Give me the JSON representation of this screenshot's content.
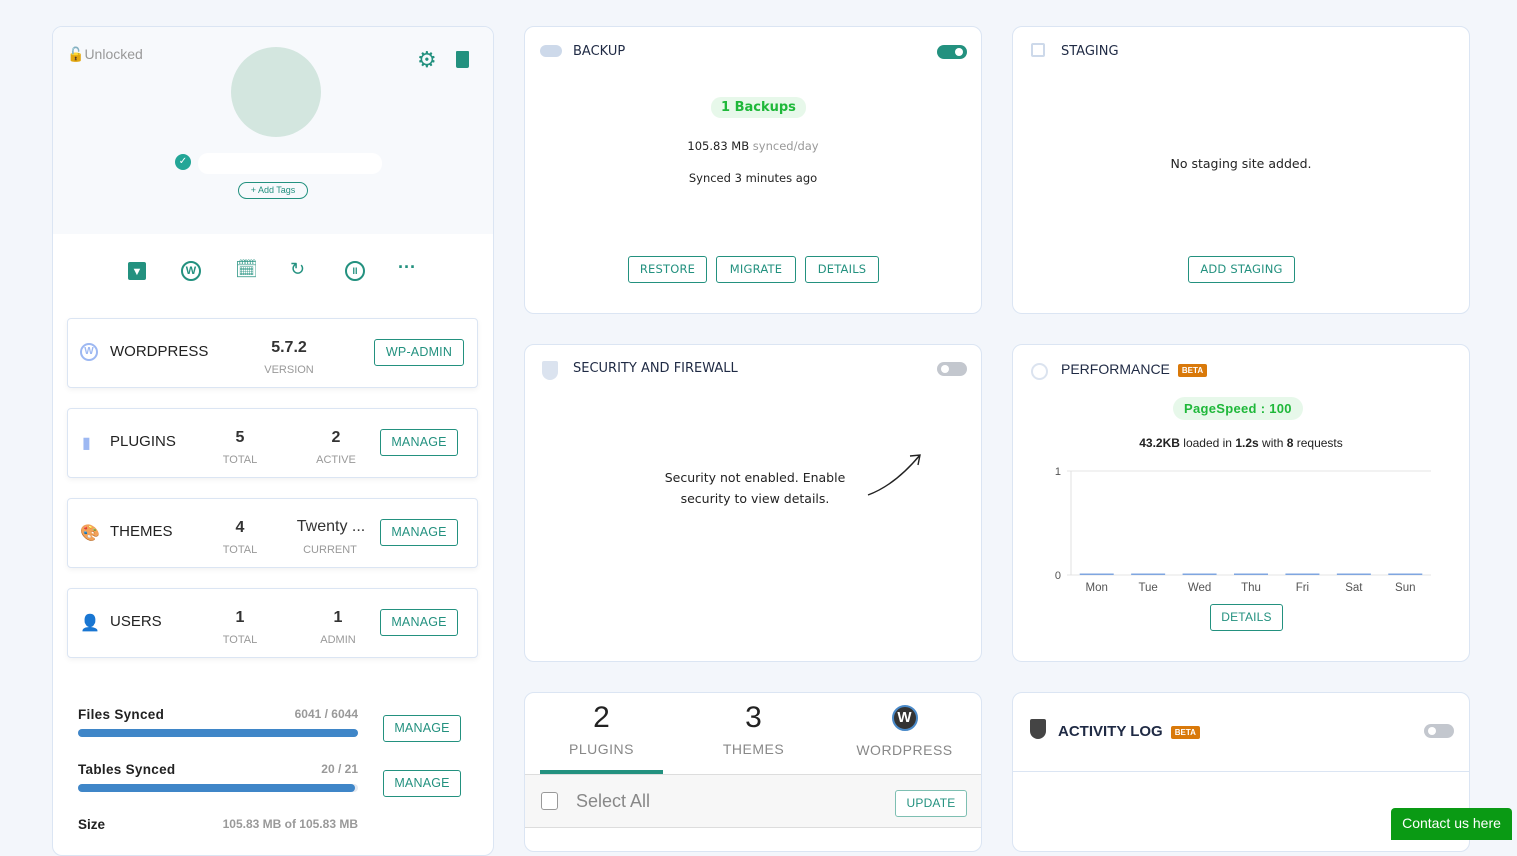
{
  "site": {
    "lock_status": "Unlocked",
    "add_tags": "+ Add Tags",
    "quick_actions": [
      "archive-icon",
      "wordpress-icon",
      "calendar-clock-icon",
      "sync-icon",
      "pause-icon",
      "more-icon"
    ],
    "wordpress": {
      "label": "WORDPRESS",
      "version": "5.7.2",
      "version_label": "VERSION",
      "button": "WP-ADMIN"
    },
    "plugins": {
      "label": "PLUGINS",
      "total": "5",
      "total_label": "TOTAL",
      "active": "2",
      "active_label": "ACTIVE",
      "button": "MANAGE"
    },
    "themes": {
      "label": "THEMES",
      "total": "4",
      "total_label": "TOTAL",
      "current": "Twenty ...",
      "current_label": "CURRENT",
      "button": "MANAGE"
    },
    "users": {
      "label": "USERS",
      "total": "1",
      "total_label": "TOTAL",
      "admin": "1",
      "admin_label": "ADMIN",
      "button": "MANAGE"
    },
    "files": {
      "label": "Files Synced",
      "value": "6041 / 6044",
      "progress": 0.9995,
      "button": "MANAGE"
    },
    "tables": {
      "label": "Tables Synced",
      "value": "20 / 21",
      "progress": 0.952,
      "button": "MANAGE"
    },
    "size": {
      "label": "Size",
      "value": "105.83 MB of 105.83 MB"
    }
  },
  "backup": {
    "title": "BACKUP",
    "enabled": true,
    "count": "1 Backups",
    "size": "105.83 MB",
    "size_suffix": "synced/day",
    "synced": "Synced 3 minutes ago",
    "buttons": [
      "RESTORE",
      "MIGRATE",
      "DETAILS"
    ]
  },
  "staging": {
    "title": "STAGING",
    "message": "No staging site added.",
    "button": "ADD STAGING"
  },
  "security": {
    "title": "SECURITY AND FIREWALL",
    "enabled": false,
    "message": "Security not enabled. Enable security to view details."
  },
  "performance": {
    "title": "PERFORMANCE",
    "badge": "BETA",
    "pagespeed": "PageSpeed : 100",
    "size": "43.2KB",
    "loaded_in": " loaded in ",
    "time": "1.2s",
    "with": " with ",
    "requests": "8",
    "requests_suffix": " requests",
    "button": "DETAILS"
  },
  "chart_data": {
    "type": "bar",
    "categories": [
      "Mon",
      "Tue",
      "Wed",
      "Thu",
      "Fri",
      "Sat",
      "Sun"
    ],
    "values": [
      0,
      0,
      0,
      0,
      0,
      0,
      0
    ],
    "ylim": [
      0,
      1
    ],
    "yticks": [
      "0",
      "1"
    ],
    "grid": true,
    "color": "#7fa6e0"
  },
  "updates": {
    "tabs": [
      {
        "count": "2",
        "label": "PLUGINS",
        "active": true
      },
      {
        "count": "3",
        "label": "THEMES"
      },
      {
        "label": "WORDPRESS"
      }
    ],
    "select_all": "Select All",
    "button": "UPDATE"
  },
  "activity": {
    "title": "ACTIVITY LOG",
    "badge": "BETA",
    "enabled": false
  },
  "contact": "Contact us here",
  "colors": {
    "accent": "#23917f",
    "success": "#1fb83a",
    "beta": "#d9790a",
    "progress": "#3f86c8"
  }
}
